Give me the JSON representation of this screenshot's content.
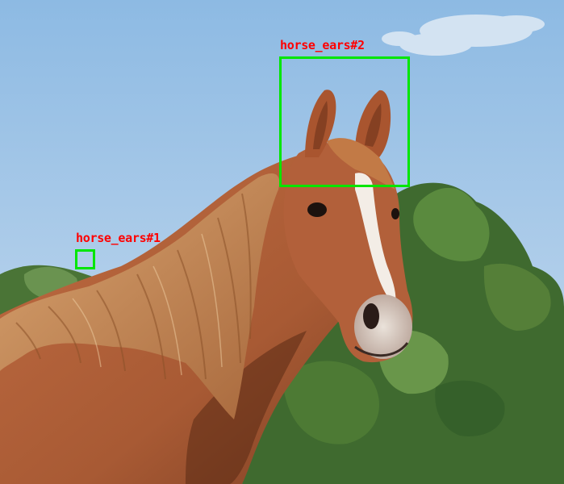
{
  "annotations": [
    {
      "id": "horse-ears-1",
      "label": "horse_ears#1"
    },
    {
      "id": "horse-ears-2",
      "label": "horse_ears#2"
    }
  ],
  "colors": {
    "box": "#00e600",
    "label": "#ff0000",
    "sky_top": "#8fbbe3",
    "sky_bottom": "#c7dbef",
    "coat": "#b2603a",
    "mane": "#c98f5b",
    "foliage": "#3f6a2f"
  }
}
